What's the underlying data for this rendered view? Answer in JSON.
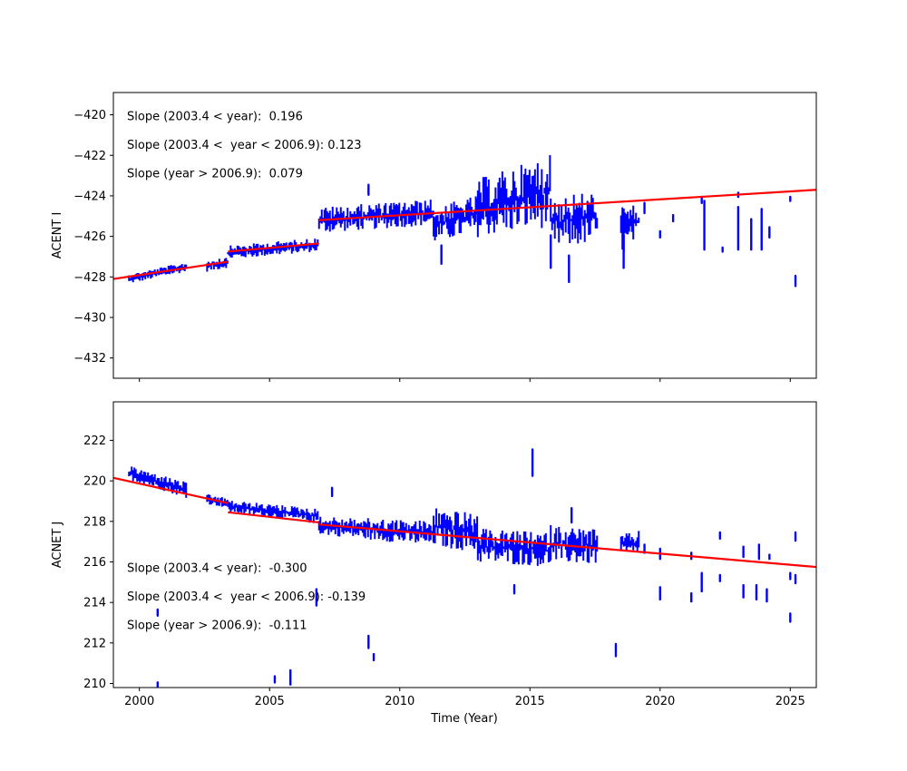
{
  "chart_data": {
    "type": "scatter",
    "xlabel": "Time (Year)",
    "xlim": [
      1999.0,
      2026.0
    ],
    "x_ticks": [
      2000,
      2005,
      2010,
      2015,
      2020,
      2025
    ],
    "marker_color": "#0000ff",
    "fit_color": "#ff0000",
    "panels": [
      {
        "ylabel": "ACENT I",
        "ylim": [
          -433.0,
          -418.9
        ],
        "y_ticks": [
          -432,
          -430,
          -428,
          -426,
          -424,
          -422,
          -420
        ],
        "show_x_tick_labels": false,
        "annotations": [
          "Slope (2003.4 < year):  0.196",
          "Slope (2003.4 <  year < 2006.9): 0.123",
          "Slope (year > 2006.9):  0.079"
        ],
        "fit_segments": [
          {
            "x": [
              1999.0,
              2003.4
            ],
            "y": [
              -428.1,
              -427.25
            ]
          },
          {
            "x": [
              2003.4,
              2006.9
            ],
            "y": [
              -426.75,
              -426.35
            ]
          },
          {
            "x": [
              2006.9,
              2026.0
            ],
            "y": [
              -425.2,
              -423.7
            ]
          }
        ],
        "clusters": [
          {
            "x0": 1999.6,
            "x1": 2001.8,
            "lo": [
              -428.3,
              -427.7
            ],
            "hi": [
              -427.9,
              -427.3
            ]
          },
          {
            "x0": 2002.6,
            "x1": 2003.4,
            "lo": [
              -427.7,
              -427.5
            ],
            "hi": [
              -427.2,
              -427.0
            ]
          },
          {
            "x0": 2003.4,
            "x1": 2006.9,
            "lo": [
              -427.1,
              -426.7
            ],
            "hi": [
              -426.5,
              -426.1
            ]
          },
          {
            "x0": 2006.9,
            "x1": 2011.3,
            "lo": [
              -425.8,
              -425.4
            ],
            "hi": [
              -424.6,
              -424.2
            ]
          },
          {
            "x0": 2011.3,
            "x1": 2013.0,
            "lo": [
              -426.3,
              -425.8
            ],
            "hi": [
              -424.6,
              -424.0
            ]
          },
          {
            "x0": 2013.0,
            "x1": 2015.8,
            "lo": [
              -426.0,
              -425.5
            ],
            "hi": [
              -423.2,
              -422.0
            ]
          },
          {
            "x0": 2015.8,
            "x1": 2017.6,
            "lo": [
              -426.6,
              -426.3
            ],
            "hi": [
              -424.0,
              -423.8
            ]
          },
          {
            "x0": 2018.5,
            "x1": 2019.2,
            "lo": [
              -427.0,
              -426.0
            ],
            "hi": [
              -424.5,
              -424.5
            ]
          }
        ],
        "spikes": [
          {
            "x": 2008.8,
            "y": [
              -423.4,
              -424.0
            ]
          },
          {
            "x": 2011.6,
            "y": [
              -427.3,
              -426.5
            ]
          },
          {
            "x": 2015.8,
            "y": [
              -427.5,
              -426.0
            ]
          },
          {
            "x": 2016.5,
            "y": [
              -428.2,
              -427.0
            ]
          },
          {
            "x": 2018.6,
            "y": [
              -427.5,
              -426.0
            ]
          },
          {
            "x": 2019.4,
            "y": [
              -424.8,
              -424.4
            ]
          },
          {
            "x": 2020.0,
            "y": [
              -426.0,
              -425.8
            ]
          },
          {
            "x": 2020.5,
            "y": [
              -425.2,
              -425.0
            ]
          },
          {
            "x": 2021.6,
            "y": [
              -424.3,
              -424.1
            ]
          },
          {
            "x": 2021.7,
            "y": [
              -426.6,
              -424.3
            ]
          },
          {
            "x": 2022.4,
            "y": [
              -426.7,
              -426.6
            ]
          },
          {
            "x": 2023.0,
            "y": [
              -424.0,
              -423.9
            ]
          },
          {
            "x": 2023.0,
            "y": [
              -426.6,
              -424.6
            ]
          },
          {
            "x": 2023.5,
            "y": [
              -426.6,
              -425.2
            ]
          },
          {
            "x": 2023.9,
            "y": [
              -426.6,
              -424.7
            ]
          },
          {
            "x": 2024.2,
            "y": [
              -426.0,
              -425.6
            ]
          },
          {
            "x": 2025.0,
            "y": [
              -424.2,
              -424.1
            ]
          },
          {
            "x": 2025.2,
            "y": [
              -428.4,
              -428.0
            ]
          }
        ]
      },
      {
        "ylabel": "ACNET J",
        "ylim": [
          209.8,
          223.9
        ],
        "y_ticks": [
          210,
          212,
          214,
          216,
          218,
          220,
          222
        ],
        "show_x_tick_labels": true,
        "annotations": [
          "Slope (2003.4 < year):  -0.300",
          "Slope (2003.4 <  year < 2006.9): -0.139",
          "Slope (year > 2006.9):  -0.111"
        ],
        "fit_segments": [
          {
            "x": [
              1999.0,
              2003.4
            ],
            "y": [
              220.15,
              218.9
            ]
          },
          {
            "x": [
              2003.4,
              2006.9
            ],
            "y": [
              218.45,
              217.95
            ]
          },
          {
            "x": [
              2006.9,
              2026.0
            ],
            "y": [
              217.85,
              215.75
            ]
          }
        ],
        "clusters": [
          {
            "x0": 1999.6,
            "x1": 2001.8,
            "lo": [
              220.1,
              219.2
            ],
            "hi": [
              220.7,
              219.9
            ]
          },
          {
            "x0": 2002.6,
            "x1": 2003.4,
            "lo": [
              218.9,
              218.7
            ],
            "hi": [
              219.3,
              219.1
            ]
          },
          {
            "x0": 2003.4,
            "x1": 2006.9,
            "lo": [
              218.5,
              217.9
            ],
            "hi": [
              219.0,
              218.6
            ]
          },
          {
            "x0": 2006.9,
            "x1": 2011.3,
            "lo": [
              217.4,
              216.8
            ],
            "hi": [
              218.2,
              218.0
            ]
          },
          {
            "x0": 2011.3,
            "x1": 2013.0,
            "lo": [
              216.8,
              216.5
            ],
            "hi": [
              218.7,
              218.3
            ]
          },
          {
            "x0": 2013.0,
            "x1": 2015.8,
            "lo": [
              216.0,
              215.8
            ],
            "hi": [
              217.6,
              217.4
            ]
          },
          {
            "x0": 2015.8,
            "x1": 2017.6,
            "lo": [
              216.0,
              215.9
            ],
            "hi": [
              217.8,
              217.6
            ]
          },
          {
            "x0": 2018.5,
            "x1": 2019.2,
            "lo": [
              216.4,
              216.3
            ],
            "hi": [
              217.3,
              217.5
            ]
          }
        ],
        "spikes": [
          {
            "x": 2000.7,
            "y": [
              209.9,
              210.0
            ]
          },
          {
            "x": 2000.7,
            "y": [
              213.4,
              213.6
            ]
          },
          {
            "x": 2005.2,
            "y": [
              210.1,
              210.3
            ]
          },
          {
            "x": 2005.8,
            "y": [
              210.0,
              210.6
            ]
          },
          {
            "x": 2006.8,
            "y": [
              213.9,
              214.6
            ]
          },
          {
            "x": 2007.4,
            "y": [
              219.3,
              219.6
            ]
          },
          {
            "x": 2008.8,
            "y": [
              211.8,
              212.3
            ]
          },
          {
            "x": 2009.0,
            "y": [
              211.2,
              211.4
            ]
          },
          {
            "x": 2014.4,
            "y": [
              214.5,
              214.8
            ]
          },
          {
            "x": 2015.1,
            "y": [
              220.3,
              221.5
            ]
          },
          {
            "x": 2016.6,
            "y": [
              218.0,
              218.6
            ]
          },
          {
            "x": 2018.3,
            "y": [
              211.4,
              211.9
            ]
          },
          {
            "x": 2019.4,
            "y": [
              216.5,
              216.8
            ]
          },
          {
            "x": 2020.0,
            "y": [
              214.2,
              214.7
            ]
          },
          {
            "x": 2020.0,
            "y": [
              216.2,
              216.6
            ]
          },
          {
            "x": 2021.2,
            "y": [
              216.2,
              216.4
            ]
          },
          {
            "x": 2021.2,
            "y": [
              214.1,
              214.4
            ]
          },
          {
            "x": 2021.6,
            "y": [
              214.6,
              215.4
            ]
          },
          {
            "x": 2022.3,
            "y": [
              217.2,
              217.4
            ]
          },
          {
            "x": 2022.3,
            "y": [
              215.1,
              215.3
            ]
          },
          {
            "x": 2023.2,
            "y": [
              214.3,
              214.8
            ]
          },
          {
            "x": 2023.2,
            "y": [
              216.3,
              216.7
            ]
          },
          {
            "x": 2023.7,
            "y": [
              214.2,
              214.8
            ]
          },
          {
            "x": 2023.8,
            "y": [
              216.2,
              216.8
            ]
          },
          {
            "x": 2024.1,
            "y": [
              214.1,
              214.6
            ]
          },
          {
            "x": 2024.2,
            "y": [
              216.2,
              216.3
            ]
          },
          {
            "x": 2025.0,
            "y": [
              213.1,
              213.4
            ]
          },
          {
            "x": 2025.0,
            "y": [
              215.2,
              215.4
            ]
          },
          {
            "x": 2025.2,
            "y": [
              215.0,
              215.3
            ]
          },
          {
            "x": 2025.2,
            "y": [
              217.1,
              217.4
            ]
          }
        ]
      }
    ]
  }
}
